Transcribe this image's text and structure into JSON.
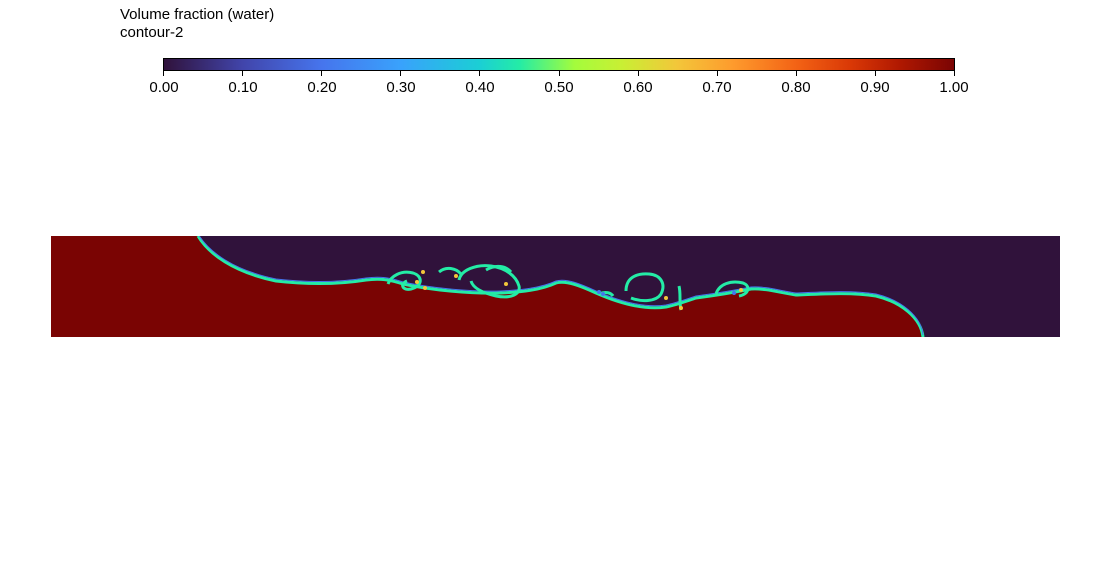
{
  "legend": {
    "title": "Volume fraction (water)",
    "subtitle": "contour-2",
    "ticks": [
      "0.00",
      "0.10",
      "0.20",
      "0.30",
      "0.40",
      "0.50",
      "0.60",
      "0.70",
      "0.80",
      "0.90",
      "1.00"
    ],
    "colormap": "turbo",
    "min_value": 0.0,
    "max_value": 1.0
  },
  "colors": {
    "water": "#7a0403",
    "air": "#30123b",
    "interface_outer": "#24eca6",
    "interface_inner": "#4675ed",
    "interface_accent": "#f3c63a"
  }
}
